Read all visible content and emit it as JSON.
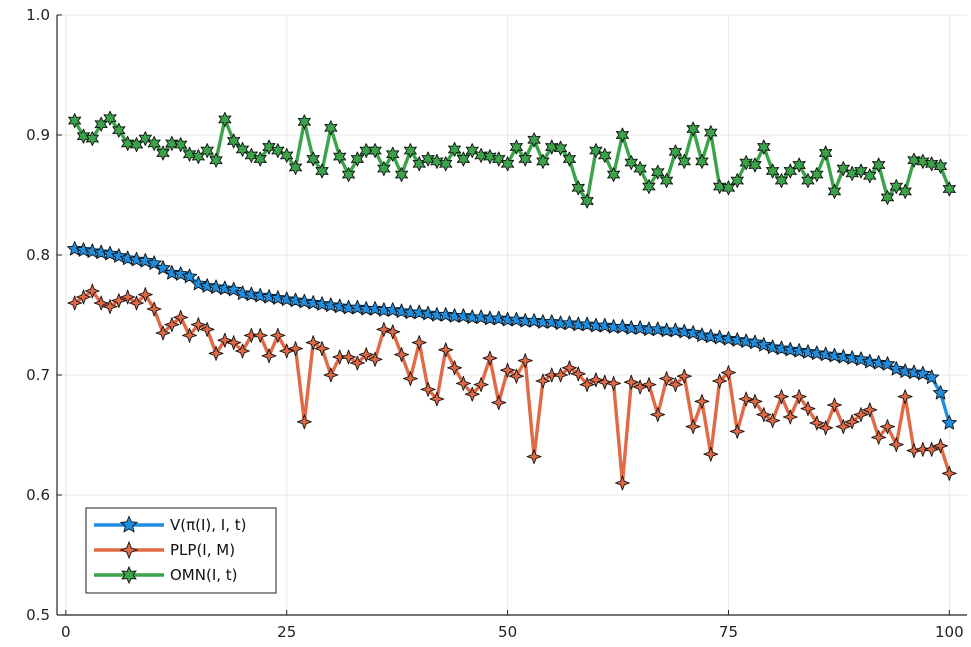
{
  "chart_data": {
    "type": "line",
    "title": "",
    "xlabel": "",
    "ylabel": "",
    "xlim": [
      -1,
      102
    ],
    "ylim": [
      0.5,
      1.0
    ],
    "xticks": [
      0,
      25,
      50,
      75,
      100
    ],
    "yticks": [
      0.5,
      0.6,
      0.7,
      0.8,
      0.9,
      1.0
    ],
    "xtick_labels": [
      "0",
      "25",
      "50",
      "75",
      "100"
    ],
    "ytick_labels": [
      "0.5",
      "0.6",
      "0.7",
      "0.8",
      "0.9",
      "1.0"
    ],
    "grid": true,
    "legend_position": "bottom-left",
    "series": [
      {
        "name": "V(π(I), I, t)",
        "color": "#1f8ee0",
        "marker": "star5",
        "y": [
          0.805,
          0.804,
          0.803,
          0.802,
          0.801,
          0.799,
          0.797,
          0.796,
          0.795,
          0.793,
          0.789,
          0.785,
          0.784,
          0.782,
          0.776,
          0.774,
          0.773,
          0.772,
          0.771,
          0.768,
          0.767,
          0.766,
          0.765,
          0.764,
          0.763,
          0.762,
          0.761,
          0.76,
          0.759,
          0.758,
          0.757,
          0.756,
          0.756,
          0.755,
          0.755,
          0.754,
          0.754,
          0.753,
          0.752,
          0.752,
          0.751,
          0.75,
          0.75,
          0.749,
          0.749,
          0.748,
          0.748,
          0.747,
          0.747,
          0.746,
          0.746,
          0.745,
          0.745,
          0.744,
          0.744,
          0.743,
          0.743,
          0.742,
          0.742,
          0.741,
          0.741,
          0.74,
          0.74,
          0.739,
          0.739,
          0.738,
          0.738,
          0.737,
          0.737,
          0.736,
          0.735,
          0.733,
          0.732,
          0.731,
          0.73,
          0.729,
          0.728,
          0.727,
          0.725,
          0.723,
          0.722,
          0.721,
          0.72,
          0.719,
          0.718,
          0.717,
          0.716,
          0.715,
          0.714,
          0.713,
          0.711,
          0.71,
          0.709,
          0.705,
          0.703,
          0.702,
          0.701,
          0.698,
          0.685,
          0.66
        ]
      },
      {
        "name": "PLP(I, M)",
        "color": "#e06a45",
        "marker": "star4",
        "y": [
          0.76,
          0.765,
          0.77,
          0.76,
          0.757,
          0.762,
          0.765,
          0.76,
          0.767,
          0.755,
          0.735,
          0.742,
          0.748,
          0.733,
          0.742,
          0.738,
          0.718,
          0.729,
          0.727,
          0.72,
          0.733,
          0.733,
          0.716,
          0.733,
          0.72,
          0.722,
          0.661,
          0.727,
          0.722,
          0.7,
          0.715,
          0.715,
          0.71,
          0.717,
          0.713,
          0.738,
          0.736,
          0.717,
          0.697,
          0.727,
          0.688,
          0.68,
          0.721,
          0.706,
          0.693,
          0.684,
          0.692,
          0.714,
          0.677,
          0.704,
          0.699,
          0.712,
          0.632,
          0.695,
          0.7,
          0.7,
          0.706,
          0.701,
          0.692,
          0.696,
          0.694,
          0.693,
          0.61,
          0.694,
          0.69,
          0.692,
          0.667,
          0.697,
          0.692,
          0.699,
          0.657,
          0.678,
          0.634,
          0.695,
          0.702,
          0.653,
          0.68,
          0.678,
          0.667,
          0.662,
          0.682,
          0.665,
          0.682,
          0.672,
          0.66,
          0.656,
          0.675,
          0.657,
          0.661,
          0.667,
          0.671,
          0.648,
          0.657,
          0.642,
          0.682,
          0.637,
          0.638,
          0.638,
          0.641,
          0.618
        ]
      },
      {
        "name": "OMN(I, t)",
        "color": "#3ba34a",
        "marker": "star6",
        "y": [
          0.912,
          0.899,
          0.897,
          0.909,
          0.914,
          0.904,
          0.893,
          0.892,
          0.897,
          0.893,
          0.885,
          0.893,
          0.892,
          0.884,
          0.882,
          0.887,
          0.879,
          0.913,
          0.895,
          0.888,
          0.883,
          0.88,
          0.89,
          0.887,
          0.883,
          0.873,
          0.911,
          0.88,
          0.87,
          0.906,
          0.882,
          0.867,
          0.88,
          0.887,
          0.887,
          0.872,
          0.884,
          0.867,
          0.887,
          0.876,
          0.88,
          0.878,
          0.876,
          0.888,
          0.88,
          0.887,
          0.883,
          0.882,
          0.88,
          0.876,
          0.89,
          0.88,
          0.896,
          0.878,
          0.89,
          0.889,
          0.88,
          0.856,
          0.845,
          0.887,
          0.883,
          0.867,
          0.9,
          0.877,
          0.872,
          0.857,
          0.869,
          0.862,
          0.886,
          0.878,
          0.905,
          0.878,
          0.902,
          0.857,
          0.856,
          0.862,
          0.877,
          0.875,
          0.89,
          0.87,
          0.862,
          0.87,
          0.875,
          0.862,
          0.867,
          0.885,
          0.853,
          0.872,
          0.868,
          0.87,
          0.866,
          0.875,
          0.848,
          0.857,
          0.853,
          0.879,
          0.878,
          0.876,
          0.874,
          0.855
        ]
      }
    ]
  }
}
